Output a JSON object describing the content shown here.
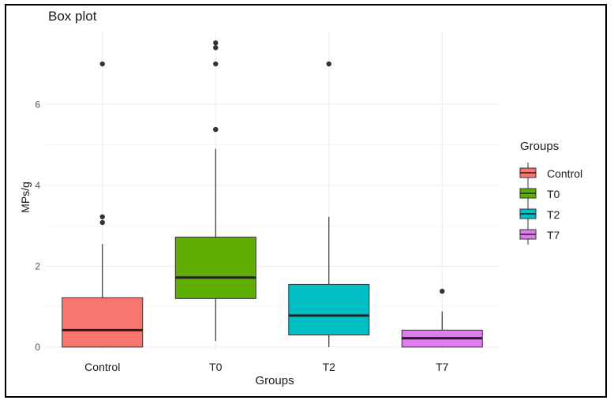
{
  "chart_data": {
    "type": "box",
    "title": "Box plot",
    "xlabel": "Groups",
    "ylabel": "MPs/g",
    "ylim": [
      -0.1,
      7.8
    ],
    "yticks": [
      0,
      2,
      4,
      6
    ],
    "grid": true,
    "legend": {
      "title": "Groups",
      "position": "right"
    },
    "categories": [
      "Control",
      "T0",
      "T2",
      "T7"
    ],
    "colors": [
      "#F8766D",
      "#5DAE00",
      "#00BFC4",
      "#E07BF0"
    ],
    "boxes": [
      {
        "group": "Control",
        "min": 0,
        "q1": 0,
        "median": 0.42,
        "q3": 1.22,
        "max": 2.55,
        "outliers": [
          3.08,
          3.22,
          7.0
        ]
      },
      {
        "group": "T0",
        "min": 0.15,
        "q1": 1.2,
        "median": 1.72,
        "q3": 2.72,
        "max": 4.9,
        "outliers": [
          5.38,
          7.0,
          7.4,
          7.52
        ]
      },
      {
        "group": "T2",
        "min": 0,
        "q1": 0.3,
        "median": 0.78,
        "q3": 1.55,
        "max": 3.22,
        "outliers": [
          7.0
        ]
      },
      {
        "group": "T7",
        "min": 0,
        "q1": 0,
        "median": 0.22,
        "q3": 0.42,
        "max": 0.88,
        "outliers": [
          1.38
        ]
      }
    ]
  }
}
